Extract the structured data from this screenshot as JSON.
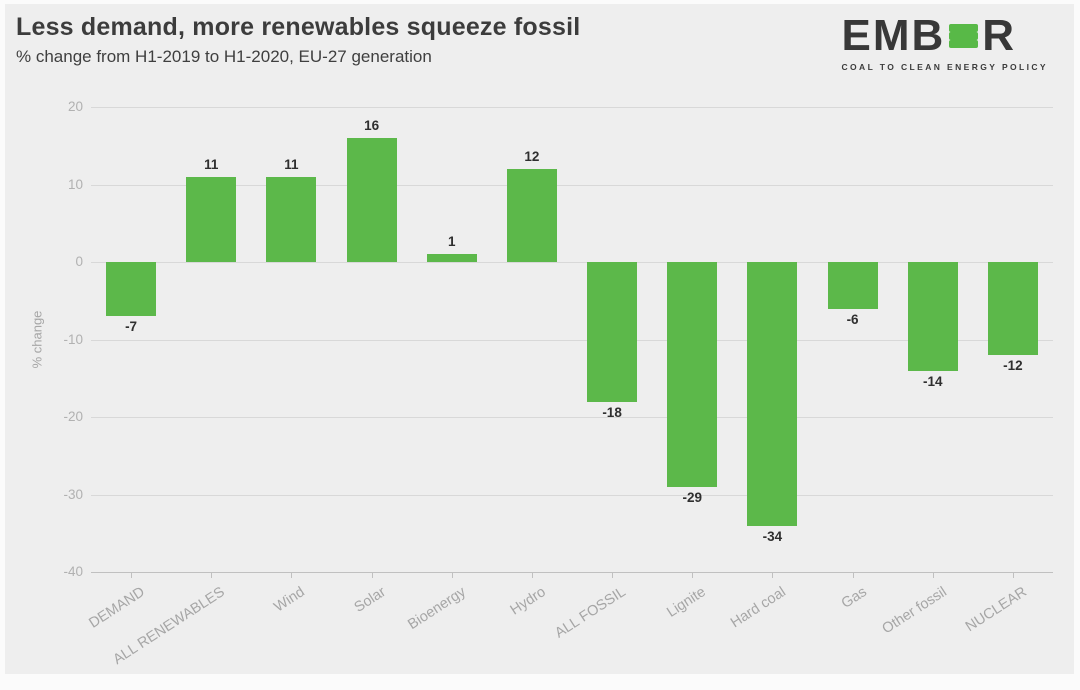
{
  "header": {
    "title": "Less demand, more renewables squeeze fossil",
    "subtitle": "% change from H1-2019 to H1-2020, EU-27 generation"
  },
  "logo": {
    "wordmark_left": "EMB",
    "wordmark_right": "R",
    "green_e_icon": "three-green-bars-e-icon",
    "tagline": "COAL TO CLEAN ENERGY POLICY"
  },
  "chart_data": {
    "type": "bar",
    "categories": [
      "DEMAND",
      "ALL RENEWABLES",
      "Wind",
      "Solar",
      "Bioenergy",
      "Hydro",
      "ALL FOSSIL",
      "Lignite",
      "Hard coal",
      "Gas",
      "Other fossil",
      "NUCLEAR"
    ],
    "values": [
      -7,
      11,
      11,
      16,
      1,
      12,
      -18,
      -29,
      -34,
      -6,
      -14,
      -12
    ],
    "title": "Less demand, more renewables squeeze fossil",
    "subtitle": "% change from H1-2019 to H1-2020, EU-27 generation",
    "xlabel": "",
    "ylabel": "% change",
    "ylim": [
      -40,
      20
    ],
    "yticks": [
      20,
      10,
      0,
      -10,
      -20,
      -30,
      -40
    ],
    "grid": true,
    "legend": "none",
    "data_labels": true
  },
  "colors": {
    "background": "#eeeeee",
    "bar": "#5cb84a",
    "logo_green": "#58b947",
    "logo_dark": "#383838",
    "title_text": "#3c3c3c",
    "axis_text": "#a6a6a6",
    "grid_line": "#d8d8d8",
    "value_label": "#2f2f2f"
  }
}
